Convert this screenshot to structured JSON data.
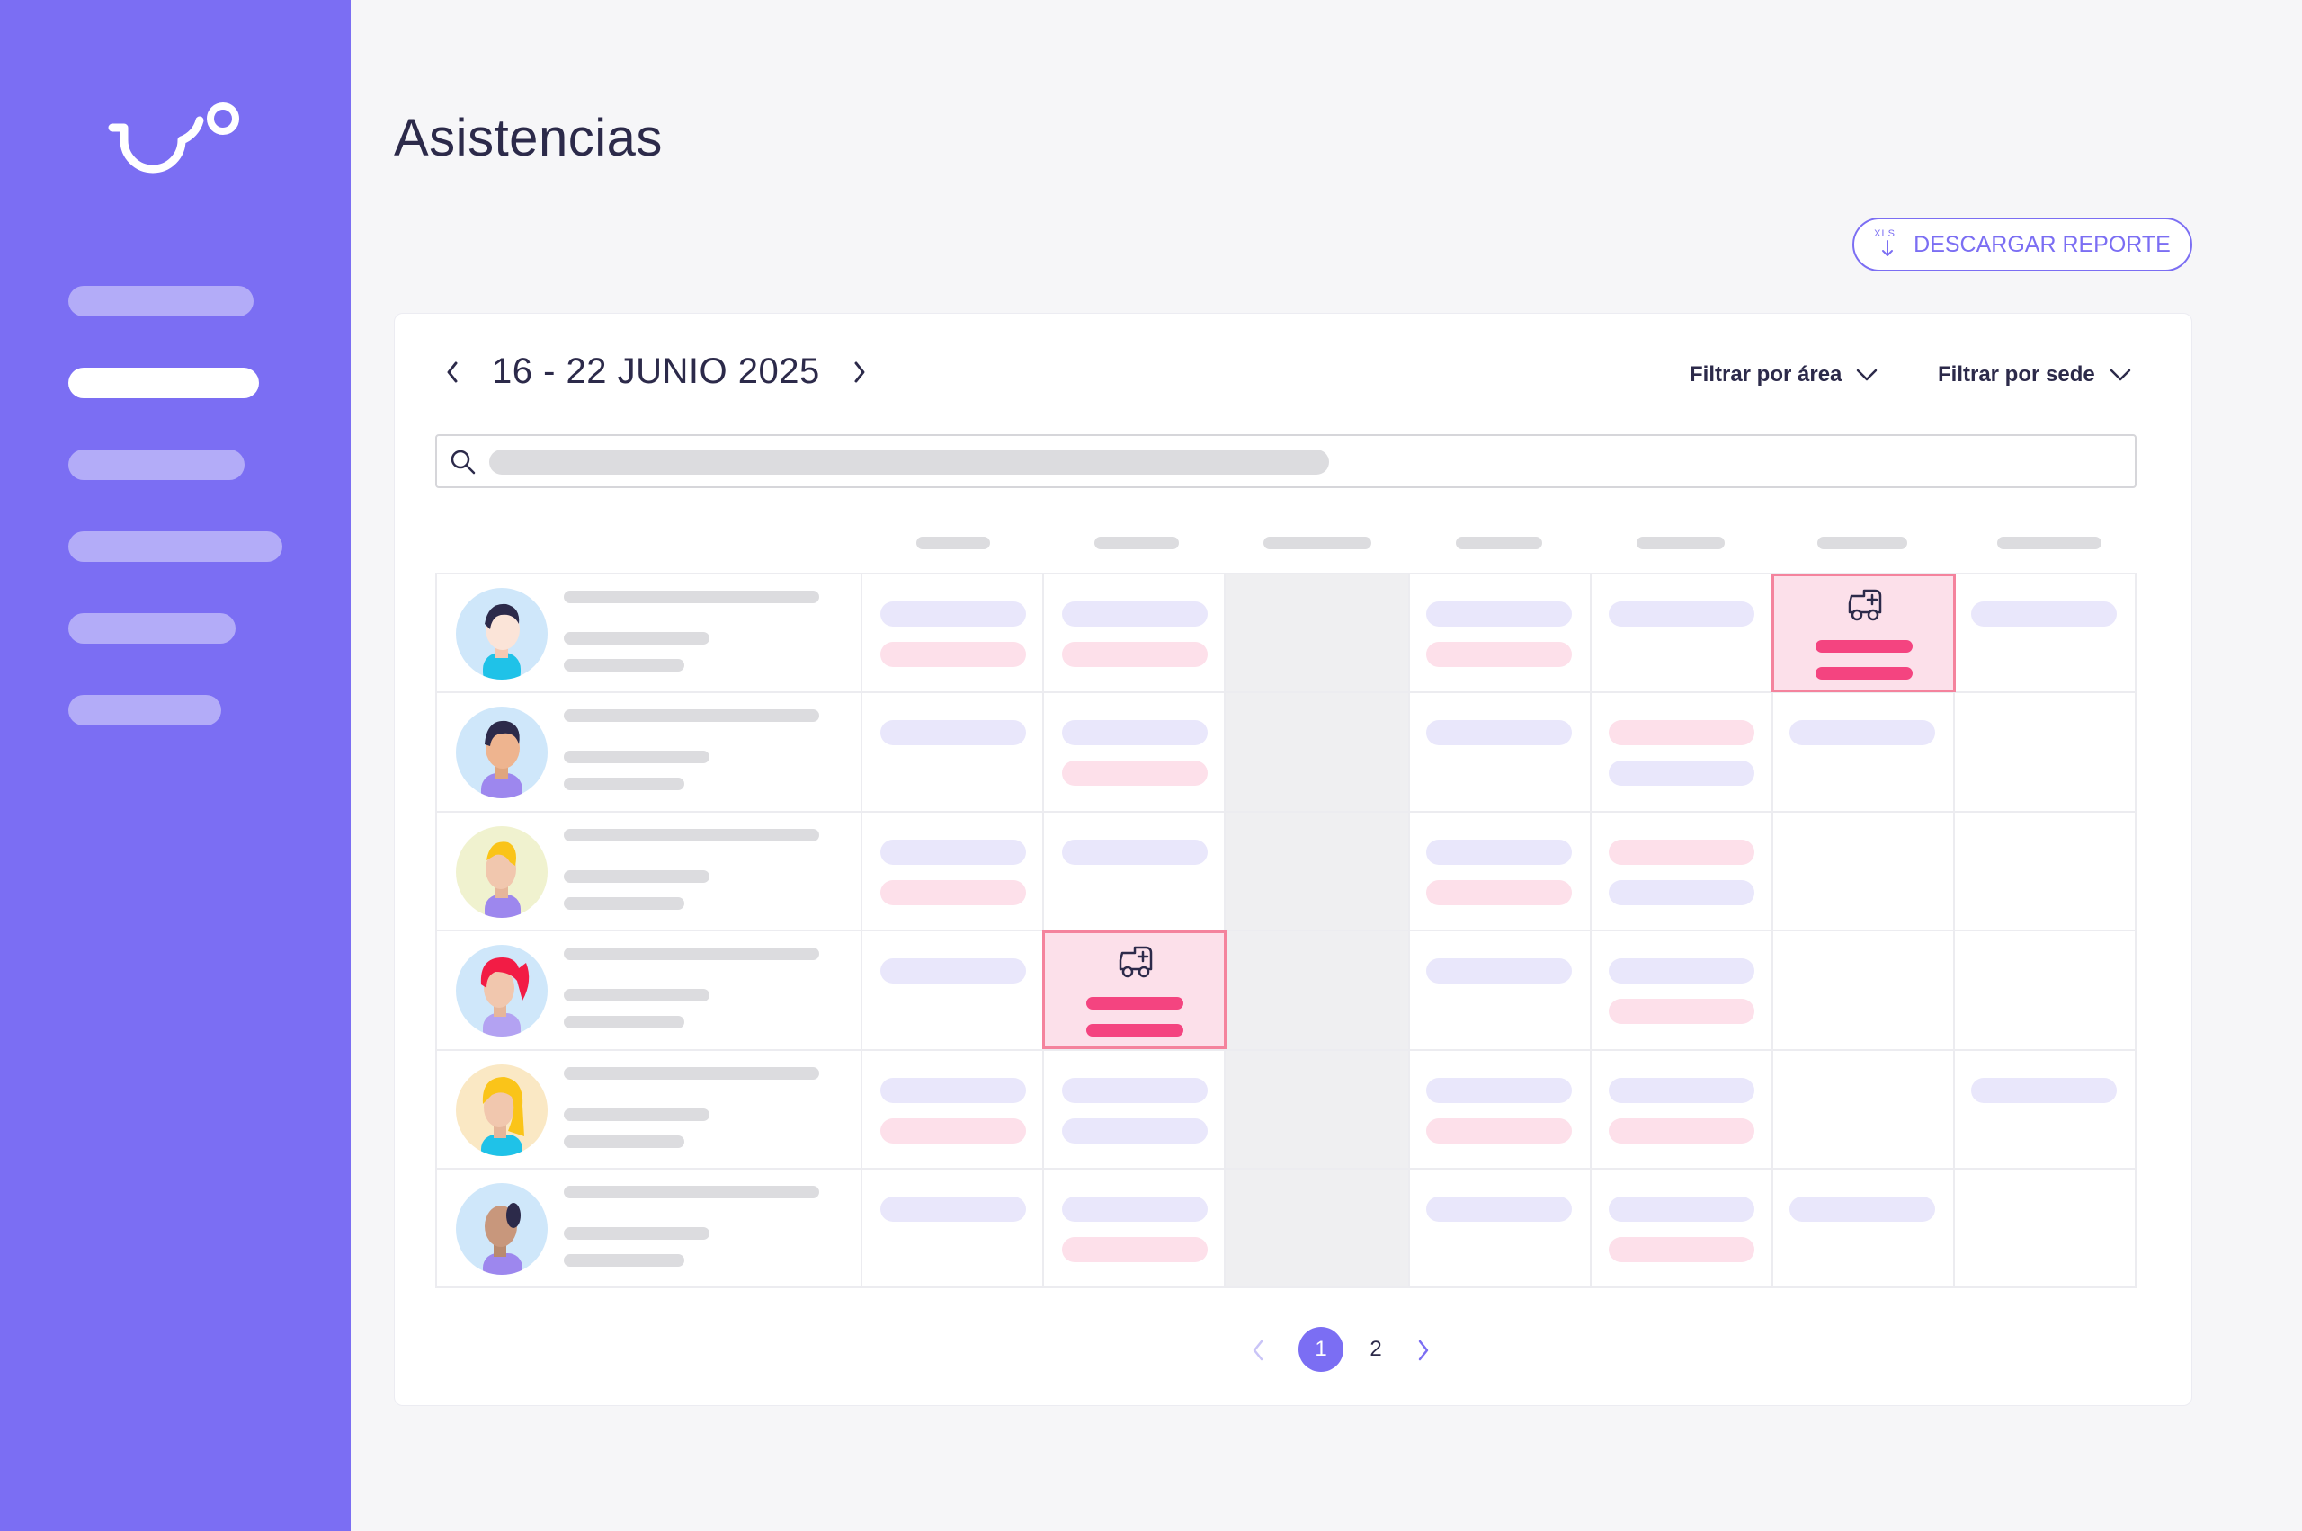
{
  "page": {
    "title": "Asistencias",
    "download_label": "DESCARGAR REPORTE",
    "download_icon_text": "XLS"
  },
  "calendar": {
    "date_range": "16 - 22 JUNIO 2025",
    "filter_area": "Filtrar por área",
    "filter_sede": "Filtrar por sede"
  },
  "pagination": {
    "pages": [
      "1",
      "2"
    ],
    "current": "1"
  },
  "colors": {
    "brand": "#7b6ef3",
    "alert_fill": "#fce0ea",
    "alert_border": "#f4839d",
    "alert_bar": "#f44480",
    "pill_lavender": "#e9e7fb",
    "pill_pink": "#fde0ea"
  },
  "icons": [
    "brand-logo",
    "xls-download-icon",
    "chevron-left-icon",
    "chevron-right-icon",
    "chevron-down-icon",
    "search-icon",
    "ambulance-icon"
  ]
}
